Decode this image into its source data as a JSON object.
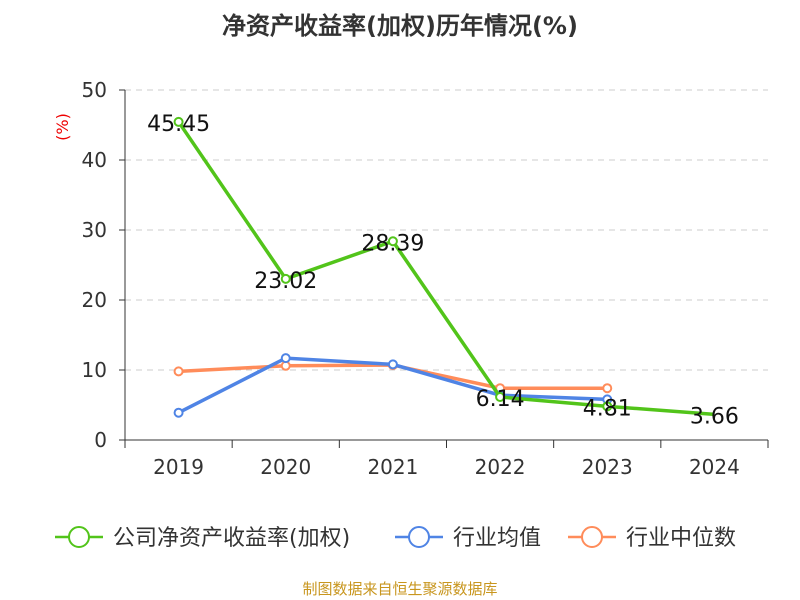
{
  "chart_data": {
    "type": "line",
    "title": "净资产收益率(加权)历年情况(%)",
    "ylabel": "(%)",
    "xlabel": "",
    "ylim": [
      0,
      50
    ],
    "yticks": [
      0,
      10,
      20,
      30,
      40,
      50
    ],
    "categories": [
      "2019",
      "2020",
      "2021",
      "2022",
      "2023",
      "2024"
    ],
    "grid": true,
    "legend_position": "bottom",
    "series": [
      {
        "name": "公司净资产收益率(加权)",
        "color": "#52c41a",
        "values": [
          45.45,
          23.02,
          28.39,
          6.14,
          4.81,
          3.66
        ],
        "labels": [
          "45.45",
          "23.02",
          "28.39",
          "6.14",
          "4.81",
          "3.66"
        ]
      },
      {
        "name": "行业均值",
        "color": "#4f84e5",
        "values": [
          3.9,
          11.7,
          10.8,
          6.4,
          5.8,
          null
        ]
      },
      {
        "name": "行业中位数",
        "color": "#ff8c5a",
        "values": [
          9.8,
          10.6,
          10.7,
          7.4,
          7.4,
          null
        ]
      }
    ]
  },
  "source": "制图数据来自恒生聚源数据库"
}
